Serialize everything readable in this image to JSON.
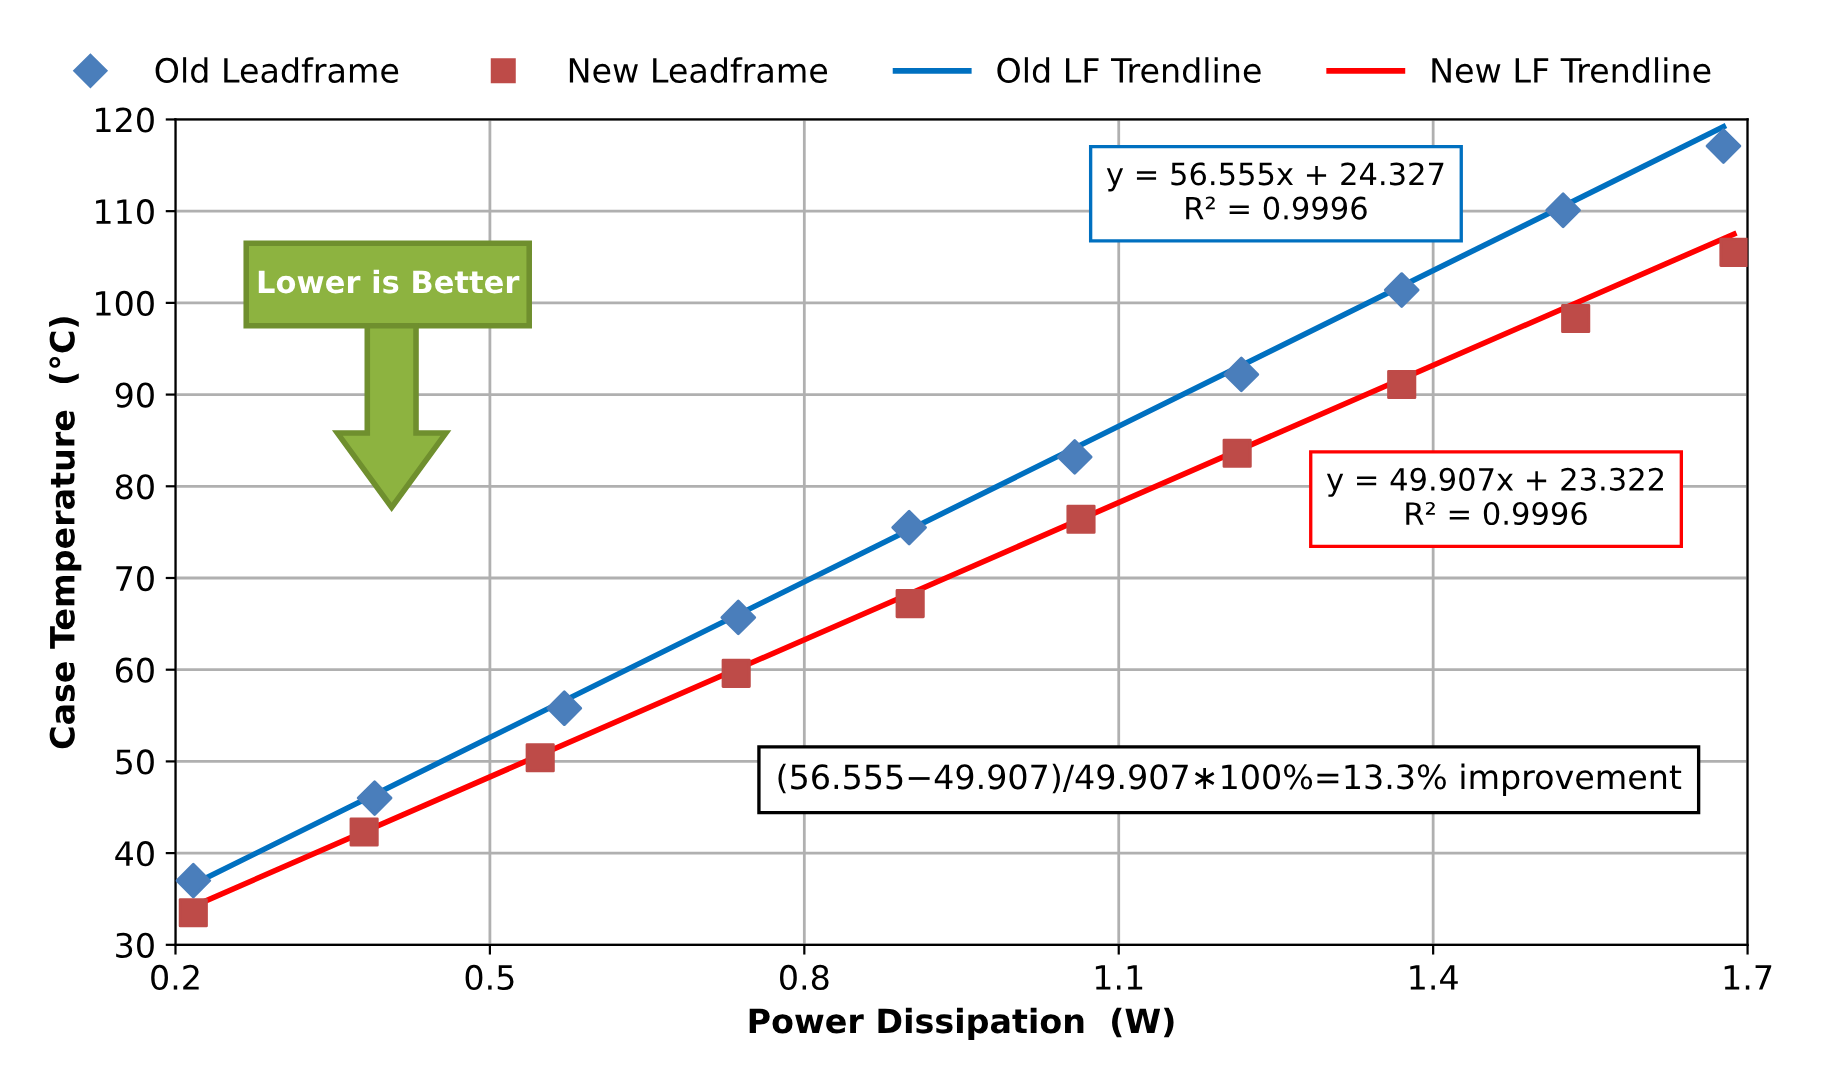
{
  "chart_data": {
    "type": "scatter",
    "xlabel": "Power Dissipation  (W)",
    "ylabel": "Case Temperature  (°C)",
    "xlim": [
      0.2,
      1.7
    ],
    "xticks": [
      0.2,
      0.5,
      0.8,
      1.1,
      1.4,
      1.7
    ],
    "ylim": [
      30,
      120
    ],
    "yticks": [
      30,
      40,
      50,
      60,
      70,
      80,
      90,
      100,
      110,
      120
    ],
    "grid": true,
    "legend": "top",
    "series": [
      {
        "name": "Old Leadframe",
        "color": "#4a7ebb",
        "marker": "diamond",
        "x": [
          0.217,
          0.39,
          0.571,
          0.737,
          0.9,
          1.058,
          1.217,
          1.37,
          1.524,
          1.677
        ],
        "values": [
          37.0,
          46.0,
          55.8,
          65.7,
          75.5,
          83.2,
          92.2,
          101.4,
          110.1,
          117.1
        ]
      },
      {
        "name": "New Leadframe",
        "color": "#be4b48",
        "marker": "square",
        "x": [
          0.217,
          0.38,
          0.548,
          0.735,
          0.901,
          1.064,
          1.213,
          1.37,
          1.536,
          1.687
        ],
        "values": [
          33.5,
          42.3,
          50.4,
          59.6,
          67.2,
          76.4,
          83.6,
          91.1,
          98.3,
          105.5
        ]
      },
      {
        "name": "Old LF Trendline",
        "type": "line",
        "color": "#0070c0",
        "marker": "none",
        "x": [
          0.217,
          1.677
        ],
        "values": [
          36.6,
          119.2
        ]
      },
      {
        "name": "New LF Trendline",
        "type": "line",
        "color": "#ff0000",
        "marker": "none",
        "x": [
          0.217,
          1.687
        ],
        "values": [
          34.2,
          107.5
        ]
      }
    ],
    "annotations": [
      "y = 56.555x + 24.327\nR² = 0.9996",
      "y = 49.907x + 23.322\nR² = 0.9996",
      "(56.555−49.907)/49.907∗100%=13.3% improvement",
      "Lower is Better"
    ]
  }
}
